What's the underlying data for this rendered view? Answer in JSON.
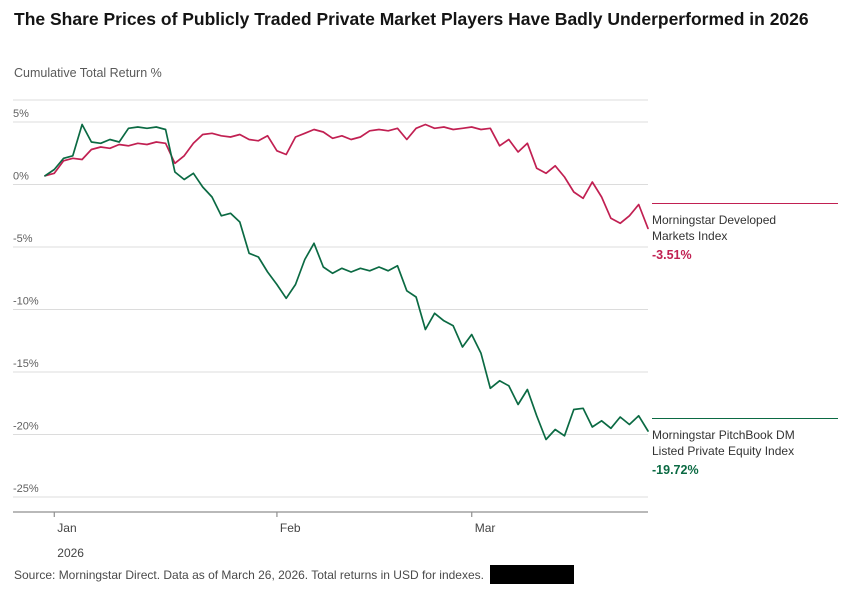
{
  "title": "The Share Prices of Publicly Traded Private Market Players Have Badly Underperformed in 2026",
  "subtitle": "Cumulative Total Return %",
  "source_note": "Source: Morningstar Direct. Data as of March 26, 2026. Total returns in USD for indexes.",
  "colors": {
    "developed_red": "#C12052",
    "pitchbook_green": "#0B6A43",
    "grid": "#dcdcdc",
    "axis": "#8f8f8f",
    "tick_text": "#5f5f5f",
    "label_text": "#444444"
  },
  "annotations": [
    {
      "label_lines": [
        "Morningstar Developed",
        "Markets Index"
      ],
      "value": "-3.51%"
    },
    {
      "label_lines": [
        "Morningstar PitchBook DM",
        "Listed Private Equity Index"
      ],
      "value": "-19.72%"
    }
  ],
  "chart_data": {
    "type": "line",
    "title": "The Share Prices of Publicly Traded Private Market Players Have Badly Underperformed in 2026",
    "ylabel": "Cumulative Total Return %",
    "xlabel": "",
    "ylim": [
      -26.5,
      6.8
    ],
    "grid": true,
    "legend_position": "right-annotations",
    "x_tick_labels": [
      "Jan",
      "Feb",
      "Mar"
    ],
    "x_year_label": "2026",
    "y_ticks": [
      5,
      0,
      -5,
      -10,
      -15,
      -20,
      -25
    ],
    "y_tick_labels": [
      "5%",
      "0%",
      "-5%",
      "-10%",
      "-15%",
      "-20%",
      "-25%"
    ],
    "x_tick_positions": [
      1,
      25,
      46
    ],
    "x_unit": "trading-day index, Jan 1 – Mar 26, 2026",
    "series": [
      {
        "name": "Morningstar Developed Markets Index",
        "color": "#C12052",
        "final_value_pct": -3.51,
        "values": [
          0.7,
          0.9,
          1.9,
          2.1,
          2.0,
          2.8,
          3.0,
          2.9,
          3.2,
          3.1,
          3.3,
          3.2,
          3.4,
          3.3,
          1.7,
          2.3,
          3.3,
          4.0,
          4.1,
          3.9,
          3.8,
          4.0,
          3.6,
          3.5,
          3.9,
          2.7,
          2.4,
          3.8,
          4.1,
          4.4,
          4.2,
          3.7,
          3.9,
          3.6,
          3.8,
          4.3,
          4.4,
          4.3,
          4.5,
          3.6,
          4.5,
          4.8,
          4.5,
          4.6,
          4.4,
          4.5,
          4.6,
          4.4,
          4.5,
          3.1,
          3.6,
          2.6,
          3.3,
          1.3,
          0.9,
          1.5,
          0.6,
          -0.6,
          -1.1,
          0.2,
          -1.0,
          -2.7,
          -3.1,
          -2.5,
          -1.6,
          -3.51
        ]
      },
      {
        "name": "Morningstar PitchBook DM Listed Private Equity Index",
        "color": "#0B6A43",
        "final_value_pct": -19.72,
        "values": [
          0.7,
          1.2,
          2.1,
          2.3,
          4.8,
          3.4,
          3.3,
          3.6,
          3.4,
          4.5,
          4.6,
          4.5,
          4.6,
          4.4,
          1.0,
          0.4,
          0.9,
          -0.2,
          -1.0,
          -2.5,
          -2.3,
          -3.0,
          -5.5,
          -5.8,
          -7.0,
          -8.0,
          -9.1,
          -8.0,
          -6.0,
          -4.7,
          -6.6,
          -7.1,
          -6.7,
          -7.0,
          -6.7,
          -6.9,
          -6.6,
          -6.9,
          -6.5,
          -8.5,
          -9.0,
          -11.6,
          -10.3,
          -10.9,
          -11.3,
          -13.0,
          -12.0,
          -13.5,
          -16.3,
          -15.7,
          -16.1,
          -17.6,
          -16.4,
          -18.5,
          -20.4,
          -19.6,
          -20.1,
          -18.0,
          -17.9,
          -19.4,
          -18.9,
          -19.5,
          -18.6,
          -19.2,
          -18.5,
          -19.72
        ]
      }
    ]
  }
}
